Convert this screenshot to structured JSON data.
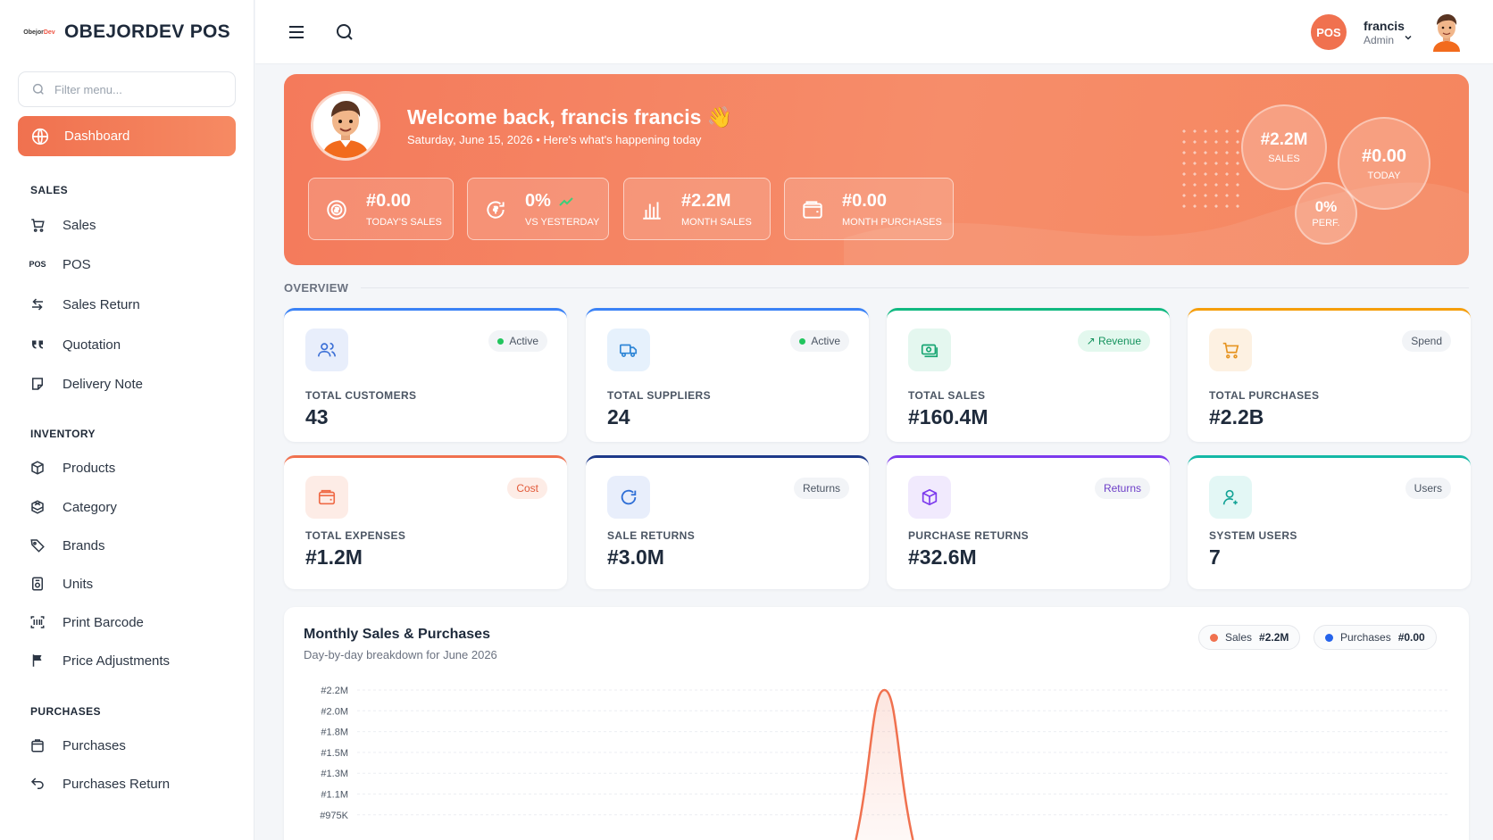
{
  "brand": {
    "logo_text_dark": "Obejor",
    "logo_text_accent": "Dev",
    "name": "OBEJORDEV POS"
  },
  "sidebar": {
    "filter_placeholder": "Filter menu...",
    "active": {
      "label": "Dashboard",
      "icon": "globe-icon"
    },
    "sections": [
      {
        "title": "SALES",
        "items": [
          {
            "label": "Sales",
            "icon": "cart-icon"
          },
          {
            "label": "POS",
            "icon": "pos-text-icon",
            "icon_text": "POS"
          },
          {
            "label": "Sales Return",
            "icon": "return-arrow-icon"
          },
          {
            "label": "Quotation",
            "icon": "quote-icon"
          },
          {
            "label": "Delivery Note",
            "icon": "note-icon"
          }
        ]
      },
      {
        "title": "INVENTORY",
        "items": [
          {
            "label": "Products",
            "icon": "box-icon"
          },
          {
            "label": "Category",
            "icon": "cubes-icon"
          },
          {
            "label": "Brands",
            "icon": "tag-icon"
          },
          {
            "label": "Units",
            "icon": "unit-icon"
          },
          {
            "label": "Print Barcode",
            "icon": "barcode-icon"
          },
          {
            "label": "Price Adjustments",
            "icon": "flag-icon"
          }
        ]
      },
      {
        "title": "PURCHASES",
        "items": [
          {
            "label": "Purchases",
            "icon": "bag-icon"
          },
          {
            "label": "Purchases Return",
            "icon": "undo-icon"
          }
        ]
      }
    ]
  },
  "topbar": {
    "badge": "POS",
    "user_name": "francis",
    "user_role": "Admin"
  },
  "hero": {
    "title": "Welcome back, francis francis 👋",
    "subtitle": "Saturday, June 15, 2026 • Here's what's happening today",
    "stats": [
      {
        "value": "#0.00",
        "label": "TODAY'S SALES",
        "icon": "coins-icon"
      },
      {
        "value": "0%",
        "label": "VS YESTERDAY",
        "icon": "refresh-coin-icon"
      },
      {
        "value": "#2.2M",
        "label": "MONTH SALES",
        "icon": "bar-chart-icon"
      },
      {
        "value": "#0.00",
        "label": "MONTH PURCHASES",
        "icon": "wallet-icon"
      }
    ],
    "bubbles": [
      {
        "value": "#2.2M",
        "label": "SALES"
      },
      {
        "value": "#0.00",
        "label": "TODAY"
      },
      {
        "value": "0%",
        "label": "PERF."
      }
    ]
  },
  "overview": {
    "title": "OVERVIEW",
    "cards": [
      {
        "label": "TOTAL CUSTOMERS",
        "value": "43",
        "badge": "Active",
        "accent": "#3b82f6",
        "icon": "users-icon"
      },
      {
        "label": "TOTAL SUPPLIERS",
        "value": "24",
        "badge": "Active",
        "accent": "#3b82f6",
        "icon": "truck-icon"
      },
      {
        "label": "TOTAL SALES",
        "value": "#160.4M",
        "badge": "↗ Revenue",
        "accent": "#10b981",
        "icon": "cash-icon"
      },
      {
        "label": "TOTAL PURCHASES",
        "value": "#2.2B",
        "badge": "Spend",
        "accent": "#f59e0b",
        "icon": "cart-icon"
      },
      {
        "label": "TOTAL EXPENSES",
        "value": "#1.2M",
        "badge": "Cost",
        "accent": "#f0714f",
        "icon": "wallet-icon"
      },
      {
        "label": "SALE RETURNS",
        "value": "#3.0M",
        "badge": "Returns",
        "accent": "#1e3a8a",
        "icon": "refresh-icon"
      },
      {
        "label": "PURCHASE RETURNS",
        "value": "#32.6M",
        "badge": "Returns",
        "accent": "#7c3aed",
        "icon": "box-icon"
      },
      {
        "label": "SYSTEM USERS",
        "value": "7",
        "badge": "Users",
        "accent": "#14b8a6",
        "icon": "user-icon"
      }
    ]
  },
  "chart": {
    "title": "Monthly Sales & Purchases",
    "subtitle": "Day-by-day breakdown for June 2026",
    "legend": [
      {
        "name": "Sales",
        "value": "#2.2M",
        "color": "#f0714f"
      },
      {
        "name": "Purchases",
        "value": "#0.00",
        "color": "#2563eb"
      }
    ]
  },
  "chart_data": {
    "type": "area",
    "title": "Monthly Sales & Purchases",
    "subtitle": "Day-by-day breakdown for June 2026",
    "y_tick_labels": [
      "#2.2M",
      "#2.0M",
      "#1.8M",
      "#1.5M",
      "#1.3M",
      "#1.1M",
      "#975K"
    ],
    "ylim_visible": [
      975000,
      2200000
    ],
    "grid": true,
    "legend_position": "top-right",
    "series": [
      {
        "name": "Sales",
        "color": "#f0714f",
        "peak_value": 2200000,
        "peak_day": 15
      },
      {
        "name": "Purchases",
        "color": "#2563eb",
        "total": 0
      }
    ]
  }
}
